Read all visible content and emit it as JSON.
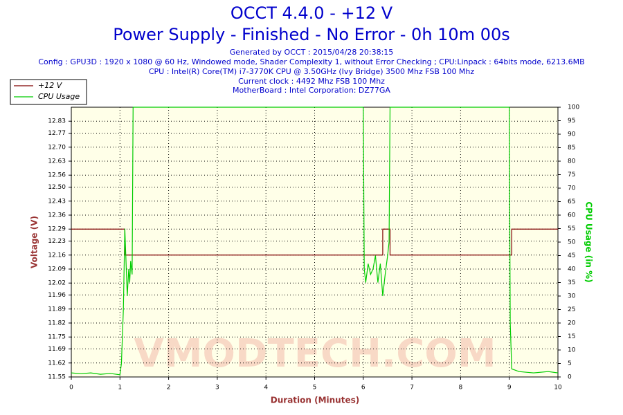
{
  "chart_data": {
    "type": "line",
    "title": "OCCT 4.4.0 - +12 V",
    "subtitle": "Power Supply - Finished - No Error - 0h 10m 00s",
    "info": [
      "Generated by OCCT : 2015/04/28 20:38:15",
      "Config : GPU3D : 1920 x 1080 @ 60 Hz, Windowed mode, Shader Complexity 1, without Error Checking ; CPU:Linpack : 64bits mode, 6213.6MB",
      "CPU : Intel(R) Core(TM) i7-3770K CPU @ 3.50GHz (Ivy Bridge) 3500 Mhz FSB 100 Mhz",
      "Current clock : 4492 Mhz FSB 100 Mhz",
      "MotherBoard : Intel Corporation: DZ77GA"
    ],
    "watermark": "VMODTECH.COM",
    "xlabel": "Duration (Minutes)",
    "ylabel": "Voltage (V)",
    "y2label": "CPU Usage (in %)",
    "xlim": [
      0,
      10
    ],
    "xticks": [
      0,
      1,
      2,
      3,
      4,
      5,
      6,
      7,
      8,
      9,
      10
    ],
    "ylim": [
      11.55,
      12.9
    ],
    "yticks": [
      {
        "value": 11.55,
        "label": "11.55"
      },
      {
        "value": 11.62,
        "label": "11.62"
      },
      {
        "value": 11.69,
        "label": "11.69"
      },
      {
        "value": 11.75,
        "label": "11.75"
      },
      {
        "value": 11.82,
        "label": "11.82"
      },
      {
        "value": 11.89,
        "label": "11.89"
      },
      {
        "value": 11.96,
        "label": "11.96"
      },
      {
        "value": 12.02,
        "label": "12.02"
      },
      {
        "value": 12.09,
        "label": "12.09"
      },
      {
        "value": 12.16,
        "label": "12.16"
      },
      {
        "value": 12.23,
        "label": "12.23"
      },
      {
        "value": 12.29,
        "label": "12.29"
      },
      {
        "value": 12.36,
        "label": "12.36"
      },
      {
        "value": 12.43,
        "label": "12.43"
      },
      {
        "value": 12.5,
        "label": "12.50"
      },
      {
        "value": 12.56,
        "label": "12.56"
      },
      {
        "value": 12.63,
        "label": "12.63"
      },
      {
        "value": 12.7,
        "label": "12.70"
      },
      {
        "value": 12.77,
        "label": "12.77"
      },
      {
        "value": 12.83,
        "label": "12.83"
      }
    ],
    "y2lim": [
      0,
      100
    ],
    "y2ticks": [
      0,
      5,
      10,
      15,
      20,
      25,
      30,
      35,
      40,
      45,
      50,
      55,
      60,
      65,
      70,
      75,
      80,
      85,
      90,
      95,
      100
    ],
    "grid": true,
    "legend": "top-left",
    "series": [
      {
        "name": "+12 V",
        "color": "#800000",
        "axis": "y",
        "x": [
          0,
          1.1,
          1.1,
          6.4,
          6.4,
          6.55,
          6.55,
          9.05,
          9.05,
          10
        ],
        "values": [
          12.29,
          12.29,
          12.16,
          12.16,
          12.29,
          12.29,
          12.16,
          12.16,
          12.29,
          12.29
        ]
      },
      {
        "name": "CPU Usage",
        "color": "#00cc00",
        "axis": "y2",
        "x": [
          0,
          0.2,
          0.4,
          0.6,
          0.8,
          1.0,
          1.03,
          1.07,
          1.1,
          1.12,
          1.15,
          1.18,
          1.2,
          1.22,
          1.25,
          1.27,
          6.0,
          6.02,
          6.05,
          6.1,
          6.15,
          6.2,
          6.25,
          6.3,
          6.35,
          6.4,
          6.45,
          6.5,
          6.53,
          6.55,
          9.0,
          9.02,
          9.05,
          9.2,
          9.5,
          9.8,
          10
        ],
        "values": [
          1.5,
          1.2,
          1.5,
          1.0,
          1.3,
          0.8,
          5,
          25,
          55,
          45,
          30,
          40,
          35,
          43,
          38,
          100,
          100,
          40,
          35,
          42,
          38,
          40,
          45,
          35,
          42,
          30,
          38,
          45,
          50,
          100,
          100,
          20,
          3,
          2,
          1.5,
          2,
          1.5
        ]
      }
    ]
  }
}
